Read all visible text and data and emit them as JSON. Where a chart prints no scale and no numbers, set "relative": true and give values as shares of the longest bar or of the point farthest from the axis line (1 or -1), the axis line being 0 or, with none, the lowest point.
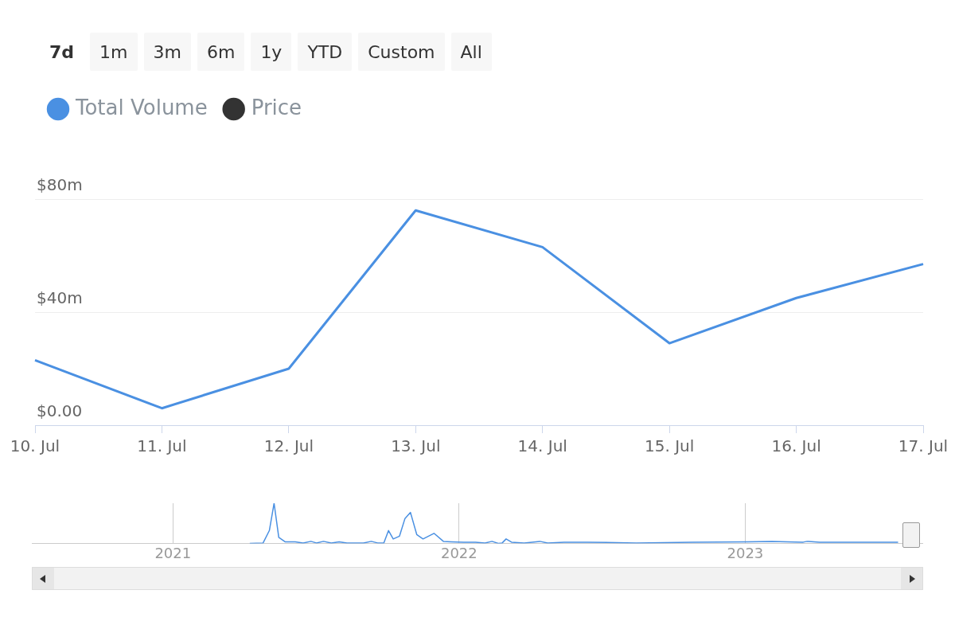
{
  "chart_data": [
    {
      "type": "line",
      "annotations": [
        "7d",
        "1m",
        "3m",
        "6m",
        "1y",
        "YTD",
        "Custom",
        "All"
      ],
      "categories": [
        "10. Jul",
        "11. Jul",
        "12. Jul",
        "13. Jul",
        "14. Jul",
        "15. Jul",
        "16. Jul",
        "17. Jul"
      ],
      "series": [
        {
          "name": "Total Volume",
          "color": "#4a90e2",
          "values": [
            23,
            6,
            20,
            76,
            63,
            29,
            45,
            57
          ]
        },
        {
          "name": "Price",
          "color": "#333333",
          "values": [
            null,
            null,
            null,
            null,
            null,
            null,
            null,
            null
          ]
        }
      ],
      "ylim": [
        0,
        80
      ],
      "yticks": [
        {
          "value": 0,
          "label": "$0.00"
        },
        {
          "value": 40,
          "label": "$40m"
        },
        {
          "value": 80,
          "label": "$80m"
        }
      ],
      "grid": "y",
      "legend": "top left",
      "marker": "none",
      "line_style": "solid"
    },
    {
      "type": "line",
      "relative": true,
      "color": "#4a90e2",
      "x": [
        "2021-04-09",
        "2021-04-26",
        "2021-05-04",
        "2021-05-10",
        "2021-05-16",
        "2021-05-24",
        "2021-06-06",
        "2021-06-16",
        "2021-06-26",
        "2021-07-03",
        "2021-07-12",
        "2021-07-22",
        "2021-08-01",
        "2021-08-11",
        "2021-09-01",
        "2021-09-11",
        "2021-09-19",
        "2021-09-27",
        "2021-10-03",
        "2021-10-09",
        "2021-10-17",
        "2021-10-24",
        "2021-10-31",
        "2021-11-08",
        "2021-11-16",
        "2021-11-30",
        "2021-12-12",
        "2021-12-22",
        "2022-01-07",
        "2022-01-22",
        "2022-02-03",
        "2022-02-12",
        "2022-02-20",
        "2022-02-25",
        "2022-03-02",
        "2022-03-09",
        "2022-03-25",
        "2022-04-14",
        "2022-04-24",
        "2022-05-15",
        "2022-06-14",
        "2022-08-15",
        "2022-10-25",
        "2023-01-04",
        "2023-02-04",
        "2023-03-16",
        "2023-03-21",
        "2023-04-06",
        "2023-07-15"
      ],
      "values": [
        0,
        0.01,
        0.32,
        1,
        0.15,
        0.04,
        0.04,
        0.01,
        0.05,
        0.01,
        0.05,
        0.01,
        0.04,
        0.01,
        0.01,
        0.05,
        0.01,
        0.01,
        0.32,
        0.11,
        0.18,
        0.62,
        0.77,
        0.22,
        0.11,
        0.25,
        0.05,
        0.04,
        0.03,
        0.03,
        0.01,
        0.05,
        0,
        0.01,
        0.11,
        0.03,
        0.01,
        0.05,
        0.01,
        0.03,
        0.03,
        0.01,
        0.03,
        0.04,
        0.05,
        0.03,
        0.05,
        0.03,
        0.03
      ],
      "xlim": [
        "2020-07-05",
        "2023-08-16"
      ],
      "xticks": [
        {
          "value": "2021-01-01",
          "label": "2021"
        },
        {
          "value": "2022-01-01",
          "label": "2022"
        },
        {
          "value": "2023-01-01",
          "label": "2023"
        }
      ],
      "grid": "x",
      "tick_labels": "x",
      "marker": "none",
      "line_style": "solid"
    }
  ]
}
